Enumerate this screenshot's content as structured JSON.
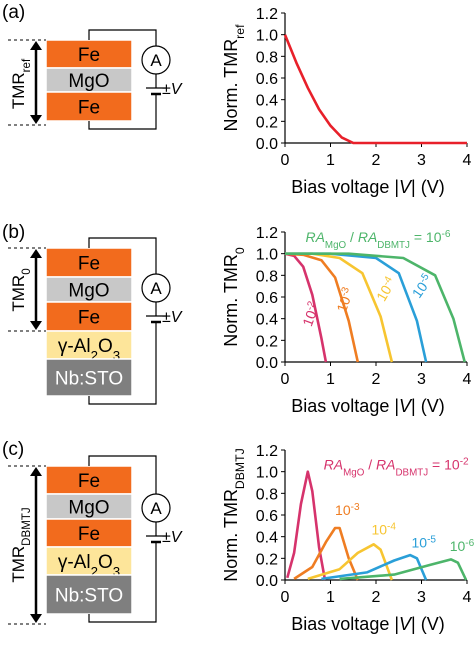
{
  "panels": [
    {
      "label": "(a)",
      "tmr_label": "TMR",
      "tmr_sub": "ref",
      "stack": [
        "Fe",
        "MgO",
        "Fe"
      ],
      "meter": "A",
      "bias": "±V",
      "ylabel": "Norm. TMR",
      "ylabel_sub": "ref",
      "xlabel": "Bias voltage |V| (V)"
    },
    {
      "label": "(b)",
      "tmr_label": "TMR",
      "tmr_sub": "0",
      "stack": [
        "Fe",
        "MgO",
        "Fe",
        "γ-Al2O3",
        "Nb:STO"
      ],
      "meter": "A",
      "bias": "±V",
      "ylabel": "Norm. TMR",
      "ylabel_sub": "0",
      "xlabel": "Bias voltage |V| (V)",
      "ratio_label": "RA_MgO / RA_DBMTJ = 10^-6"
    },
    {
      "label": "(c)",
      "tmr_label": "TMR",
      "tmr_sub": "DBMTJ",
      "stack": [
        "Fe",
        "MgO",
        "Fe",
        "γ-Al2O3",
        "Nb:STO"
      ],
      "meter": "A",
      "bias": "±V",
      "ylabel": "Norm. TMR",
      "ylabel_sub": "DBMTJ",
      "xlabel": "Bias voltage |V| (V)",
      "ratio_label": "RA_MgO / RA_DBMTJ = 10^-2"
    }
  ],
  "colors": {
    "fe": "#f26b1d",
    "mgo": "#c8c8c8",
    "al2o3": "#fde59a",
    "sto": "#7f7f7f",
    "s2": "#d6336c",
    "s3": "#ef7d22",
    "s4": "#f7c531",
    "s5": "#2a9fd8",
    "s6": "#4db56a",
    "ref": "#e8202a"
  },
  "chart_data": [
    {
      "type": "line",
      "xlabel": "Bias voltage |V| (V)",
      "ylabel": "Norm. TMRref",
      "xlim": [
        0,
        4
      ],
      "ylim": [
        0,
        1.2
      ],
      "xticks": [
        0,
        1,
        2,
        3,
        4
      ],
      "yticks": [
        0,
        0.2,
        0.4,
        0.6,
        0.8,
        1.0,
        1.2
      ],
      "series": [
        {
          "x": [
            0,
            0.25,
            0.5,
            0.75,
            1.0,
            1.25,
            1.5,
            2,
            3,
            4
          ],
          "y": [
            1.0,
            0.74,
            0.51,
            0.31,
            0.16,
            0.05,
            0,
            0,
            0,
            0
          ]
        }
      ]
    },
    {
      "type": "line",
      "xlabel": "Bias voltage |V| (V)",
      "ylabel": "Norm. TMR0",
      "xlim": [
        0,
        4
      ],
      "ylim": [
        0,
        1.2
      ],
      "xticks": [
        0,
        1,
        2,
        3,
        4
      ],
      "yticks": [
        0,
        0.2,
        0.4,
        0.6,
        0.8,
        1.0,
        1.2
      ],
      "series": [
        {
          "name": "10^-2",
          "x": [
            0,
            0.2,
            0.4,
            0.6,
            0.8,
            0.9
          ],
          "y": [
            1.0,
            0.98,
            0.88,
            0.62,
            0.22,
            0
          ]
        },
        {
          "name": "10^-3",
          "x": [
            0,
            0.4,
            0.8,
            1.1,
            1.4,
            1.6
          ],
          "y": [
            1.0,
            0.99,
            0.94,
            0.78,
            0.38,
            0
          ]
        },
        {
          "name": "10^-4",
          "x": [
            0,
            0.6,
            1.2,
            1.7,
            2.1,
            2.35
          ],
          "y": [
            1.0,
            1.0,
            0.96,
            0.82,
            0.42,
            0
          ]
        },
        {
          "name": "10^-5",
          "x": [
            0,
            1.0,
            2.0,
            2.5,
            2.9,
            3.1
          ],
          "y": [
            1.0,
            1.0,
            0.96,
            0.82,
            0.38,
            0
          ]
        },
        {
          "name": "10^-6",
          "x": [
            0,
            1.4,
            2.6,
            3.3,
            3.7,
            3.95
          ],
          "y": [
            1.0,
            1.0,
            0.96,
            0.8,
            0.4,
            0
          ]
        }
      ]
    },
    {
      "type": "line",
      "xlabel": "Bias voltage |V| (V)",
      "ylabel": "Norm. TMRDBMTJ",
      "xlim": [
        0,
        4
      ],
      "ylim": [
        0,
        1.2
      ],
      "xticks": [
        0,
        1,
        2,
        3,
        4
      ],
      "yticks": [
        0,
        0.2,
        0.4,
        0.6,
        0.8,
        1.0,
        1.2
      ],
      "series": [
        {
          "name": "10^-2",
          "x": [
            0.05,
            0.2,
            0.35,
            0.5,
            0.6,
            0.75,
            0.88
          ],
          "y": [
            0.02,
            0.25,
            0.7,
            1.0,
            0.82,
            0.3,
            0
          ]
        },
        {
          "name": "10^-3",
          "x": [
            0.2,
            0.6,
            0.9,
            1.1,
            1.2,
            1.4,
            1.6
          ],
          "y": [
            0.01,
            0.12,
            0.35,
            0.48,
            0.48,
            0.2,
            0
          ]
        },
        {
          "name": "10^-4",
          "x": [
            0.5,
            1.2,
            1.6,
            1.95,
            2.1,
            2.35
          ],
          "y": [
            0.01,
            0.1,
            0.25,
            0.33,
            0.28,
            0
          ]
        },
        {
          "name": "10^-5",
          "x": [
            0.8,
            1.8,
            2.4,
            2.75,
            2.9,
            3.1
          ],
          "y": [
            0.01,
            0.07,
            0.18,
            0.23,
            0.2,
            0
          ]
        },
        {
          "name": "10^-6",
          "x": [
            1.2,
            2.4,
            3.2,
            3.65,
            3.8,
            3.98
          ],
          "y": [
            0.01,
            0.05,
            0.14,
            0.19,
            0.16,
            0
          ]
        }
      ]
    }
  ]
}
